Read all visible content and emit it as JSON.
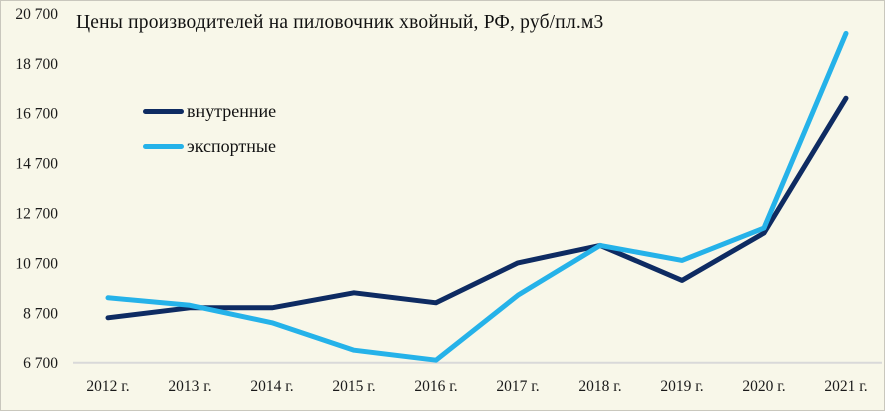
{
  "colors": {
    "background": "#f8f7e9",
    "border": "#c9c7bd",
    "axis_line": "#d9d9d9",
    "text": "#111111",
    "domestic_line": "#0e2b62",
    "export_line": "#25b2e9"
  },
  "legend": {
    "items": [
      {
        "key": "domestic",
        "label": "внутренние",
        "color": "#0e2b62"
      },
      {
        "key": "export",
        "label": "экспортные",
        "color": "#25b2e9"
      }
    ]
  },
  "chart_data": {
    "type": "line",
    "title": "Цены производителей на пиловочник хвойный, РФ, руб/пл.м3",
    "units": "руб/пл.м3",
    "categories": [
      "2012 г.",
      "2013 г.",
      "2014 г.",
      "2015 г.",
      "2016 г.",
      "2017 г.",
      "2018 г.",
      "2019 г.",
      "2020 г.",
      "2021 г."
    ],
    "series": [
      {
        "key": "domestic",
        "name": "внутренние",
        "color": "#0e2b62",
        "values": [
          8500,
          8900,
          8900,
          9500,
          9100,
          10700,
          11400,
          10000,
          11900,
          17300
        ]
      },
      {
        "key": "export",
        "name": "экспортные",
        "color": "#25b2e9",
        "values": [
          9300,
          9000,
          8300,
          7200,
          6800,
          9400,
          11400,
          10800,
          12100,
          19900
        ]
      }
    ],
    "ylim": [
      6700,
      20700
    ],
    "y_tick_step": 2000,
    "y_ticks": [
      {
        "value": 6700,
        "label": "6 700"
      },
      {
        "value": 8700,
        "label": "8 700"
      },
      {
        "value": 10700,
        "label": "10 700"
      },
      {
        "value": 12700,
        "label": "12 700"
      },
      {
        "value": 14700,
        "label": "14 700"
      },
      {
        "value": 16700,
        "label": "16 700"
      },
      {
        "value": 18700,
        "label": "18 700"
      },
      {
        "value": 20700,
        "label": "20 700"
      }
    ],
    "grid": false,
    "legend_position": "inside-top-left",
    "xlabel": "",
    "ylabel": ""
  }
}
